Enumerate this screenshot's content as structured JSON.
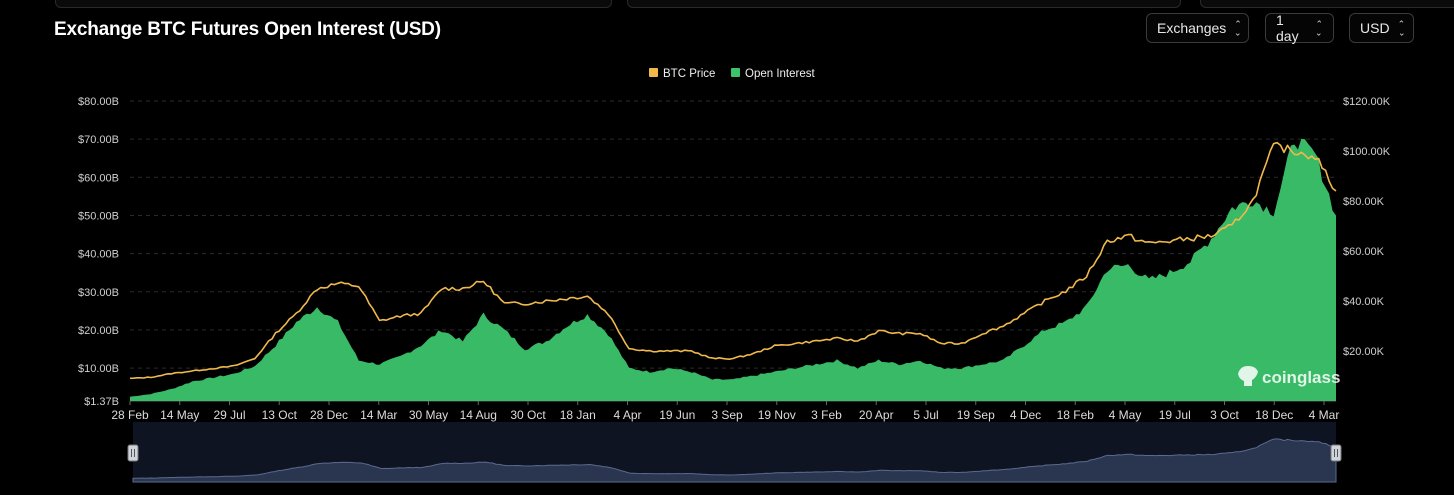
{
  "header": {
    "title": "Exchange BTC Futures Open Interest (USD)",
    "controls": [
      {
        "label": "Exchanges"
      },
      {
        "label": "1 day"
      },
      {
        "label": "USD"
      }
    ]
  },
  "watermark": "coinglass",
  "colors": {
    "btc_price": "#f0b94a",
    "open_interest": "#3cc46d",
    "background": "#000000",
    "navigator_fill": "#2a3550"
  },
  "chart_data": {
    "type": "area",
    "legend": [
      "BTC Price",
      "Open Interest"
    ],
    "legend_position": "top-center",
    "x_ticks": [
      "28 Feb",
      "14 May",
      "29 Jul",
      "13 Oct",
      "28 Dec",
      "14 Mar",
      "30 May",
      "14 Aug",
      "30 Oct",
      "18 Jan",
      "4 Apr",
      "19 Jun",
      "3 Sep",
      "19 Nov",
      "3 Feb",
      "20 Apr",
      "5 Jul",
      "19 Sep",
      "4 Dec",
      "18 Feb",
      "4 May",
      "19 Jul",
      "3 Oct",
      "18 Dec",
      "4 Mar"
    ],
    "y_left_ticks": [
      "$1.37B",
      "$10.00B",
      "$20.00B",
      "$30.00B",
      "$40.00B",
      "$50.00B",
      "$60.00B",
      "$70.00B",
      "$80.00B"
    ],
    "y_left_range": [
      1.37,
      80
    ],
    "y_right_ticks": [
      "$20.00K",
      "$40.00K",
      "$60.00K",
      "$80.00K",
      "$100.00K",
      "$120.00K"
    ],
    "y_right_range": [
      0,
      120
    ],
    "grid": true,
    "series": [
      {
        "name": "Open Interest",
        "axis": "left",
        "unit": "USD billions",
        "values": [
          2.5,
          3.2,
          4.5,
          6.5,
          7.5,
          8.5,
          10.5,
          16,
          22,
          26,
          22,
          12,
          11,
          13,
          16,
          20,
          17,
          24,
          20,
          15,
          17,
          21,
          24,
          19,
          10,
          9,
          10,
          9,
          7,
          7,
          8,
          9,
          10,
          11,
          12,
          10,
          12,
          11,
          12,
          10,
          10,
          11,
          12,
          16,
          20,
          22,
          26,
          36,
          37,
          33,
          35,
          38,
          44,
          52,
          54,
          51,
          70,
          66,
          50
        ]
      },
      {
        "name": "BTC Price",
        "axis": "right",
        "unit": "USD thousands",
        "values": [
          9,
          9.5,
          11,
          12,
          13,
          14,
          17,
          27,
          35,
          45,
          47,
          46,
          32,
          34,
          35,
          45,
          45,
          48,
          39,
          39,
          40,
          41,
          42,
          35,
          21,
          20,
          20,
          20,
          17,
          17,
          19,
          22,
          23,
          24,
          25,
          24,
          28,
          27,
          27,
          23,
          23,
          27,
          30,
          35,
          40,
          44,
          50,
          64,
          66,
          63,
          64,
          65,
          66,
          70,
          80,
          102,
          100,
          98,
          84
        ]
      }
    ]
  }
}
